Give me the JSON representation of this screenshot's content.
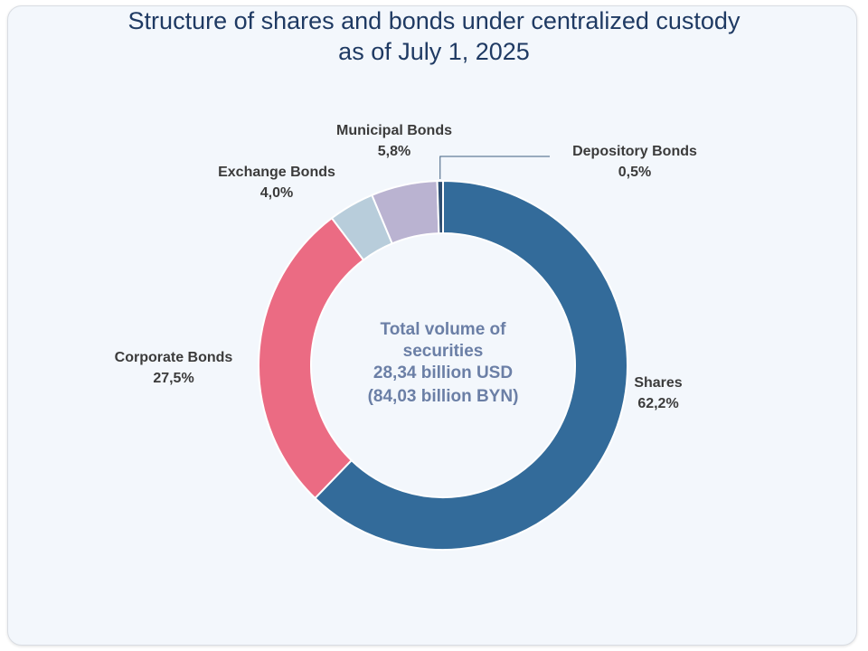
{
  "title_lines": [
    "Structure of shares and bonds under centralized custody",
    "as of July 1, 2025"
  ],
  "center_lines": [
    "Total volume of",
    "securities",
    "28,34 billion USD",
    "(84,03 billion BYN)"
  ],
  "chart_data": {
    "type": "pie",
    "variant": "donut",
    "title": "Structure of shares and bonds under centralized custody as of July 1, 2025",
    "slices": [
      {
        "name": "Shares",
        "value": 62.2,
        "label": "62,2%",
        "color": "#336b9a"
      },
      {
        "name": "Corporate Bonds",
        "value": 27.5,
        "label": "27,5%",
        "color": "#eb6b83"
      },
      {
        "name": "Exchange Bonds",
        "value": 4.0,
        "label": "4,0%",
        "color": "#b8cddb"
      },
      {
        "name": "Municipal Bonds",
        "value": 5.8,
        "label": "5,8%",
        "color": "#bab3d1"
      },
      {
        "name": "Depository Bonds",
        "value": 0.5,
        "label": "0,5%",
        "color": "#2f4f73"
      }
    ],
    "direction": "clockwise",
    "start": "top"
  }
}
